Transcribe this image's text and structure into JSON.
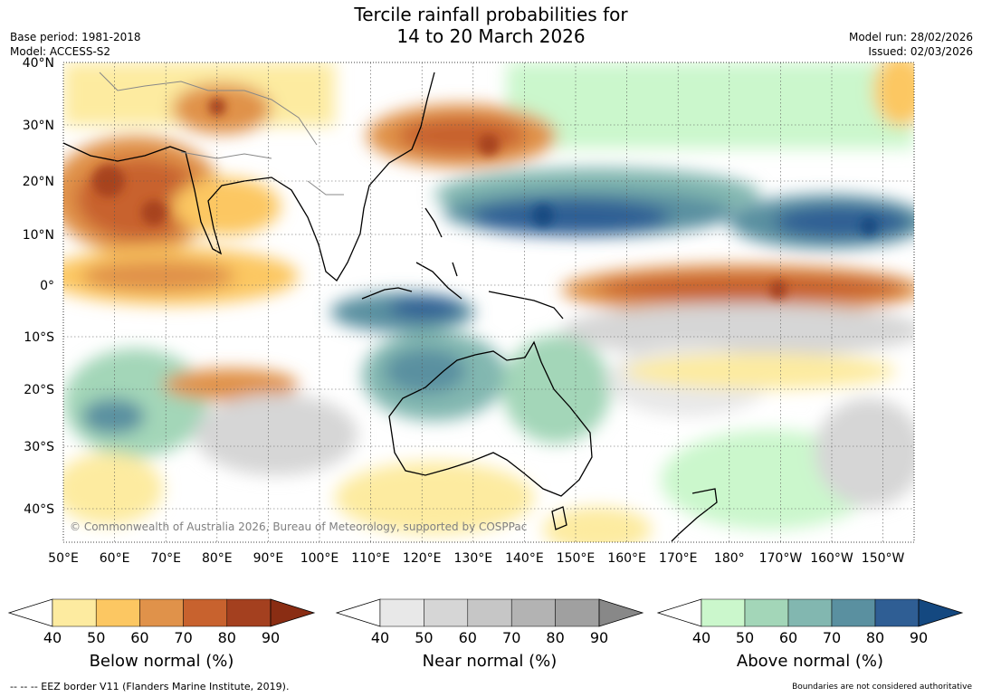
{
  "header": {
    "title_line1": "Tercile rainfall probabilities for",
    "title_line2": "14 to 20 March 2026",
    "base_period": "Base period: 1981-2018",
    "model": "Model: ACCESS-S2",
    "model_run": "Model run: 28/02/2026",
    "issued": "Issued: 02/03/2026"
  },
  "map": {
    "copyright": "© Commonwealth of Australia 2026, Bureau of Meteorology, supported by COSPPac",
    "lat_labels": [
      "40°N",
      "30°N",
      "20°N",
      "10°N",
      "0°",
      "10°S",
      "20°S",
      "30°S",
      "40°S"
    ],
    "lon_labels": [
      "50°E",
      "60°E",
      "70°E",
      "80°E",
      "90°E",
      "100°E",
      "110°E",
      "120°E",
      "130°E",
      "140°E",
      "150°E",
      "160°E",
      "170°E",
      "180°",
      "170°W",
      "160°W",
      "150°W"
    ]
  },
  "colorbars": [
    {
      "title": "Below normal (%)",
      "ticks": [
        "40",
        "50",
        "60",
        "70",
        "80",
        "90"
      ],
      "colors": [
        "#ffffff",
        "#fdeba0",
        "#fcc762",
        "#e0924a",
        "#c8622e",
        "#a4401f",
        "#8a2d13"
      ]
    },
    {
      "title": "Near normal (%)",
      "ticks": [
        "40",
        "50",
        "60",
        "70",
        "80",
        "90"
      ],
      "colors": [
        "#ffffff",
        "#e8e8e8",
        "#d6d6d6",
        "#c6c6c6",
        "#b3b3b3",
        "#a0a0a0",
        "#888888"
      ]
    },
    {
      "title": "Above normal (%)",
      "ticks": [
        "40",
        "50",
        "60",
        "70",
        "80",
        "90"
      ],
      "colors": [
        "#ffffff",
        "#cbf7cc",
        "#a3d6b8",
        "#82b7b0",
        "#5a90a0",
        "#2f5e94",
        "#144880"
      ]
    }
  ],
  "footer": {
    "eez": "--  --  -- EEZ border V11 (Flanders Marine Institute, 2019).",
    "disclaimer": "Boundaries are not considered authoritative"
  }
}
